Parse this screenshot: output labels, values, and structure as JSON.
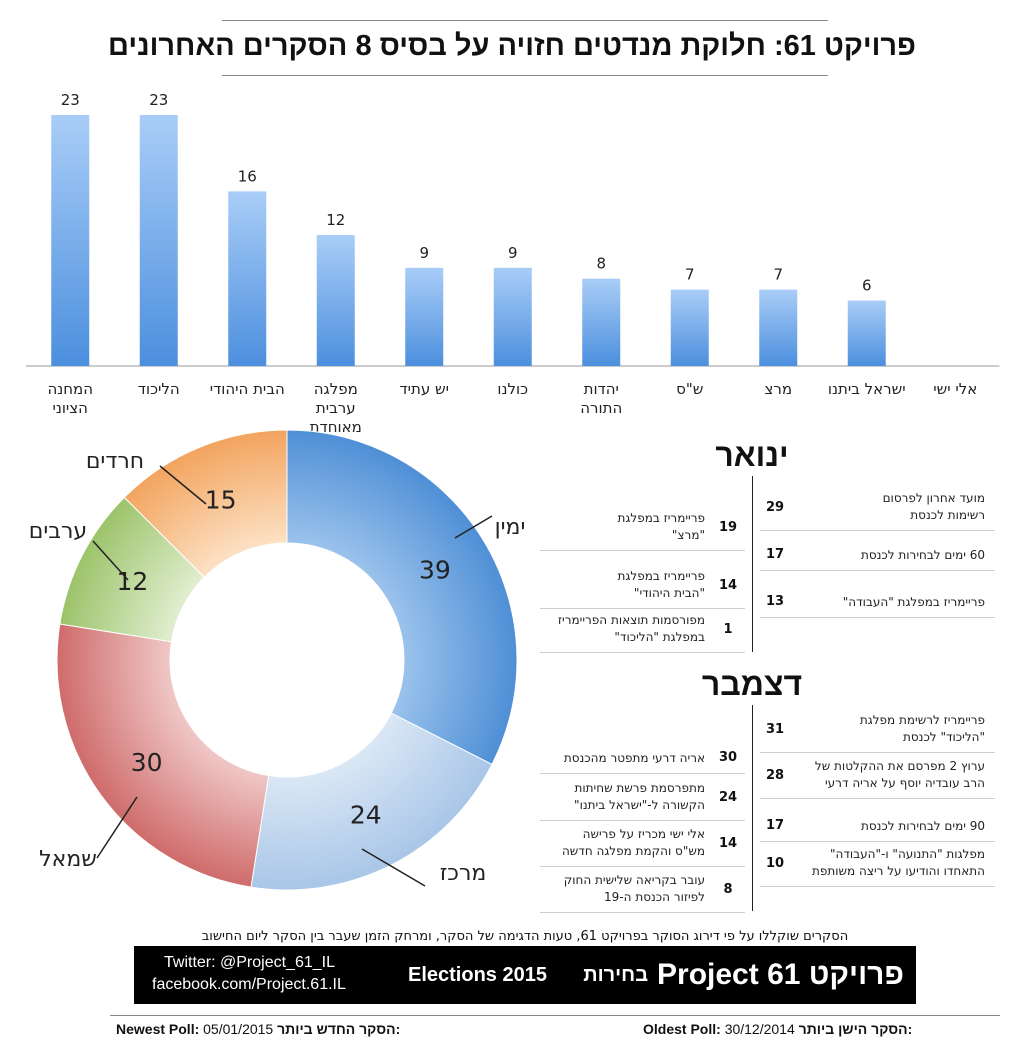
{
  "title": "פרויקט 61: חלוקת מנדטים חזויה על בסיס 8 הסקרים האחרונים",
  "colors": {
    "bar_top": "#a9cdf7",
    "bar_bottom": "#4c8fde",
    "axis": "#999999"
  },
  "chart_data": [
    {
      "type": "bar",
      "categories": [
        "המחנה הציוני",
        "הליכוד",
        "הבית היהודי",
        "מפלגה ערבית מאוחדת",
        "יש עתיד",
        "כולנו",
        "יהדות התורה",
        "ש\"ס",
        "מרצ",
        "ישראל ביתנו",
        "אלי ישי"
      ],
      "category_lines": [
        [
          "המחנה",
          "הציוני"
        ],
        [
          "הליכוד"
        ],
        [
          "הבית היהודי"
        ],
        [
          "מפלגה",
          "ערבית",
          "מאוחדת"
        ],
        [
          "יש עתיד"
        ],
        [
          "כולנו"
        ],
        [
          "יהדות",
          "התורה"
        ],
        [
          "ש\"ס"
        ],
        [
          "מרצ"
        ],
        [
          "ישראל ביתנו"
        ],
        [
          "אלי ישי"
        ]
      ],
      "values": [
        23,
        23,
        16,
        12,
        9,
        9,
        8,
        7,
        7,
        6,
        0
      ],
      "data_labels": [
        "23",
        "23",
        "16",
        "12",
        "9",
        "9",
        "8",
        "7",
        "7",
        "6",
        ""
      ],
      "ylim": [
        0,
        23
      ]
    },
    {
      "type": "pie",
      "donut": true,
      "labels": [
        "ימין",
        "מרכז",
        "שמאל",
        "ערבים",
        "חרדים"
      ],
      "values": [
        39,
        24,
        30,
        12,
        15
      ],
      "colors": [
        [
          "#4f8fd6",
          "#9cc3ec"
        ],
        [
          "#a9c6e8",
          "#dbe8f5"
        ],
        [
          "#cf6b6b",
          "#f0c9c8"
        ],
        [
          "#9cc36a",
          "#e2efd1"
        ],
        [
          "#f2a45e",
          "#fde2c6"
        ]
      ]
    }
  ],
  "timeline": {
    "months": [
      {
        "name": "ינואר",
        "right_events": [
          {
            "day": "29",
            "text": "מועד אחרון לפרסום\nרשימות לכנסת"
          },
          {
            "day": "17",
            "text": "60 ימים לבחירות לכנסת"
          },
          {
            "day": "13",
            "text": "פריימריז במפלגת \"העבודה\""
          }
        ],
        "left_events": [
          {
            "day": "19",
            "text": "פריימריז במפלגת\n\"מרצ\""
          },
          {
            "day": "14",
            "text": "פריימריז במפלגת\n\"הבית היהודי\""
          },
          {
            "day": "1",
            "text": "מפורסמות תוצאות הפריימריז\nבמפלגת \"הליכוד\""
          }
        ]
      },
      {
        "name": "דצמבר",
        "right_events": [
          {
            "day": "31",
            "text": "פריימריז לרשימת מפלגת\n\"הליכוד\" לכנסת"
          },
          {
            "day": "28",
            "text": "ערוץ 2 מפרסם את ההקלטות של\nהרב עובדיה יוסף על אריה דרעי"
          },
          {
            "day": "17",
            "text": "90 ימים לבחירות לכנסת"
          },
          {
            "day": "10",
            "text": "מפלגות \"התנועה\" ו-\"העבודה\"\nהתאחדו והודיעו על ריצה משותפת"
          }
        ],
        "left_events": [
          {
            "day": "30",
            "text": "אריה דרעי מתפטר מהכנסת"
          },
          {
            "day": "24",
            "text": "מתפרסמת פרשת שחיתות\nהקשורה ל-\"ישראל ביתנו\""
          },
          {
            "day": "14",
            "text": "אלי ישי מכריז על פרישה\nמש\"ס והקמת מפלגה חדשה"
          },
          {
            "day": "8",
            "text": "עובר בקריאה שלישית החוק\nלפיזור הכנסת ה-19"
          }
        ]
      }
    ]
  },
  "note": "הסקרים שוקללו על פי דירוג הסוקר בפרויקט 61, טעות הדגימה של הסקר, ומרחק הזמן שעבר בין הסקר ליום החישוב",
  "banner": {
    "title": "פרויקט Project 61",
    "subtitle": "בחירות",
    "subtitle_en": "Elections 2015",
    "twitter": "Twitter: @Project_61_IL",
    "facebook": "facebook.com/Project.61.IL"
  },
  "footer": {
    "newest_label_he": "הסקר החדש ביותר:",
    "newest_label_en": "Newest Poll:",
    "newest_date": "05/01/2015",
    "oldest_label_he": "הסקר הישן ביותר:",
    "oldest_label_en": "Oldest Poll:",
    "oldest_date": "30/12/2014"
  }
}
